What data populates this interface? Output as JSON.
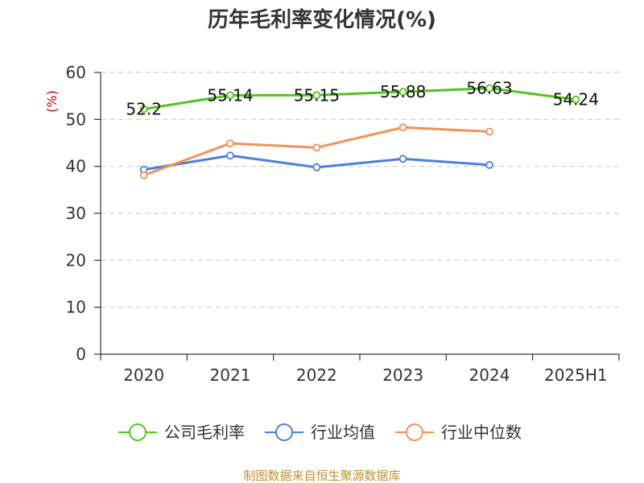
{
  "chart_data": {
    "type": "line",
    "title": "历年毛利率变化情况(%)",
    "ylabel": "(%)",
    "xlabel": "",
    "categories": [
      "2020",
      "2021",
      "2022",
      "2023",
      "2024",
      "2025H1"
    ],
    "ylim": [
      0,
      60
    ],
    "yticks": [
      0,
      10,
      20,
      30,
      40,
      50,
      60
    ],
    "grid": true,
    "legend_position": "bottom",
    "series": [
      {
        "name": "公司毛利率",
        "color": "#52c41a",
        "values": [
          52.2,
          55.14,
          55.15,
          55.88,
          56.63,
          54.24
        ],
        "labels": [
          "52.2",
          "55.14",
          "55.15",
          "55.88",
          "56.63",
          "54.24"
        ]
      },
      {
        "name": "行业均值",
        "color": "#4a7fdc",
        "values": [
          39.3,
          42.3,
          39.8,
          41.6,
          40.3,
          null
        ]
      },
      {
        "name": "行业中位数",
        "color": "#f59056",
        "values": [
          38.1,
          44.9,
          44.0,
          48.3,
          47.4,
          null
        ]
      }
    ]
  },
  "source": "制图数据来自恒生聚源数据库"
}
